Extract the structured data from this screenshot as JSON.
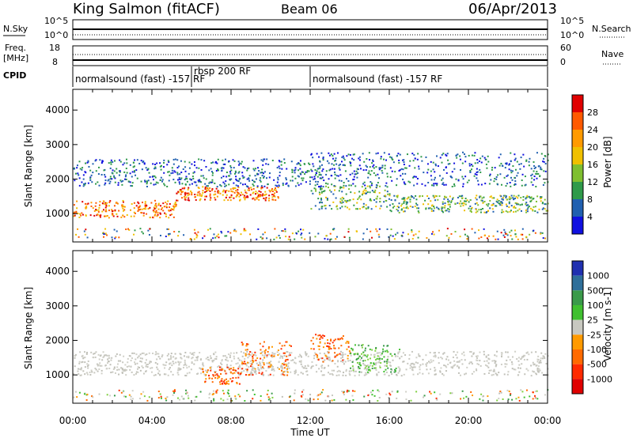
{
  "header": {
    "station": "King Salmon (fitACF)",
    "beam": "Beam 06",
    "date": "06/Apr/2013"
  },
  "strips": {
    "nsky_label": "N.Sky",
    "nsearch_label": "N.Search",
    "freq_label_1": "Freq.",
    "freq_label_2": "[MHz]",
    "nave_label": "Nave",
    "cpid_label": "CPID",
    "noise_left_ticks": [
      "10^5",
      "10^0"
    ],
    "noise_right_ticks": [
      "10^5",
      "10^0"
    ],
    "freq_left_ticks": [
      "18",
      "8"
    ],
    "freq_right_ticks": [
      "60",
      "0"
    ]
  },
  "cpid_segments": [
    {
      "start_hr": 0,
      "end_hr": 6,
      "label": "normalsound (fast) -157 RF"
    },
    {
      "start_hr": 6,
      "end_hr": 12,
      "label": "rbsp 200 RF"
    },
    {
      "start_hr": 12,
      "end_hr": 24,
      "label": "normalsound (fast) -157 RF"
    }
  ],
  "colorbars": {
    "power": {
      "label": "Power [dB]",
      "ticks": [
        "28",
        "24",
        "20",
        "16",
        "12",
        "8",
        "4"
      ],
      "colors": [
        "#e00000",
        "#ff5a00",
        "#ff9a00",
        "#f0c000",
        "#7fbf30",
        "#2f9a4a",
        "#2060b0",
        "#1010e0"
      ]
    },
    "velocity": {
      "label": "Velocity [m s-1]",
      "ticks": [
        "1000",
        "500",
        "100",
        "25",
        "-25",
        "-100",
        "-500",
        "-1000"
      ],
      "colors": [
        "#2030b0",
        "#2f6f9a",
        "#3a9a4a",
        "#40c030",
        "#c8c8c0",
        "#ff9a00",
        "#ff6a00",
        "#ff2a00",
        "#e00000"
      ]
    }
  },
  "chart_data": [
    {
      "type": "heatmap",
      "panel": "power",
      "ylabel": "Slant Range [km]",
      "yticks": [
        1000,
        2000,
        3000,
        4000
      ],
      "ylim": [
        180,
        4600
      ],
      "xlim": [
        0,
        24
      ],
      "bands": [
        {
          "from_hr": 0,
          "to_hr": 5.2,
          "center_km": 1150,
          "thickness_km": 250,
          "level": "orange"
        },
        {
          "from_hr": 5.2,
          "to_hr": 10.5,
          "center_km": 1600,
          "thickness_km": 200,
          "level": "orange"
        },
        {
          "from_hr": 12,
          "to_hr": 16,
          "center_km": 1500,
          "thickness_km": 350,
          "level": "green"
        },
        {
          "from_hr": 16,
          "to_hr": 24,
          "center_km": 1300,
          "thickness_km": 250,
          "level": "green"
        },
        {
          "from_hr": 0,
          "to_hr": 12,
          "center_km": 2200,
          "thickness_km": 400,
          "level": "blue"
        },
        {
          "from_hr": 12,
          "to_hr": 24,
          "center_km": 2300,
          "thickness_km": 500,
          "level": "blue"
        }
      ]
    },
    {
      "type": "heatmap",
      "panel": "velocity",
      "ylabel": "Slant Range [km]",
      "yticks": [
        1000,
        2000,
        3000,
        4000
      ],
      "ylim": [
        180,
        4600
      ],
      "xlim": [
        0,
        24
      ],
      "bands": [
        {
          "from_hr": 0,
          "to_hr": 24,
          "center_km": 1350,
          "thickness_km": 350,
          "level": "ground"
        },
        {
          "from_hr": 6.5,
          "to_hr": 8.5,
          "center_km": 1000,
          "thickness_km": 250,
          "level": "orange"
        },
        {
          "from_hr": 8.5,
          "to_hr": 11,
          "center_km": 1500,
          "thickness_km": 500,
          "level": "orange"
        },
        {
          "from_hr": 12,
          "to_hr": 14,
          "center_km": 1800,
          "thickness_km": 400,
          "level": "orange"
        },
        {
          "from_hr": 14,
          "to_hr": 16.5,
          "center_km": 1500,
          "thickness_km": 400,
          "level": "green"
        }
      ]
    }
  ],
  "xaxis": {
    "ticks": [
      "00:00",
      "04:00",
      "08:00",
      "12:00",
      "16:00",
      "20:00",
      "00:00"
    ],
    "label": "Time UT"
  }
}
